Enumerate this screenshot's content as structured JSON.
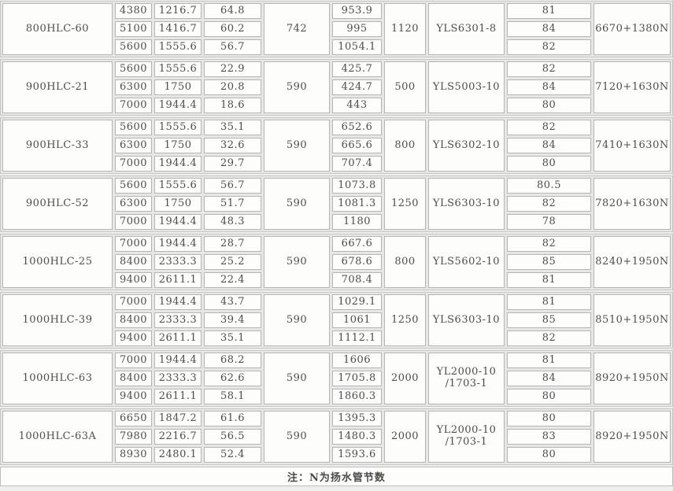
{
  "note": "注：N为扬水管节数",
  "groups": [
    {
      "model": "800HLC-60",
      "speed_rpm": "742",
      "motor_power_kw": "1120",
      "motor_model": "YLS6301-8",
      "length": "6670+1380N",
      "rows": [
        {
          "flow_m3h": "4380",
          "flow_ls": "1216.7",
          "head_m": "64.8",
          "shaft_power_kw": "953.9",
          "efficiency_pct": "81"
        },
        {
          "flow_m3h": "5100",
          "flow_ls": "1416.7",
          "head_m": "60.2",
          "shaft_power_kw": "995",
          "efficiency_pct": "84"
        },
        {
          "flow_m3h": "5600",
          "flow_ls": "1555.6",
          "head_m": "56.7",
          "shaft_power_kw": "1054.1",
          "efficiency_pct": "82"
        }
      ]
    },
    {
      "model": "900HLC-21",
      "speed_rpm": "590",
      "motor_power_kw": "500",
      "motor_model": "YLS5003-10",
      "length": "7120+1630N",
      "rows": [
        {
          "flow_m3h": "5600",
          "flow_ls": "1555.6",
          "head_m": "22.9",
          "shaft_power_kw": "425.7",
          "efficiency_pct": "82"
        },
        {
          "flow_m3h": "6300",
          "flow_ls": "1750",
          "head_m": "20.8",
          "shaft_power_kw": "424.7",
          "efficiency_pct": "84"
        },
        {
          "flow_m3h": "7000",
          "flow_ls": "1944.4",
          "head_m": "18.6",
          "shaft_power_kw": "443",
          "efficiency_pct": "80"
        }
      ]
    },
    {
      "model": "900HLC-33",
      "speed_rpm": "590",
      "motor_power_kw": "800",
      "motor_model": "YLS6302-10",
      "length": "7410+1630N",
      "rows": [
        {
          "flow_m3h": "5600",
          "flow_ls": "1555.6",
          "head_m": "35.1",
          "shaft_power_kw": "652.6",
          "efficiency_pct": "82"
        },
        {
          "flow_m3h": "6300",
          "flow_ls": "1750",
          "head_m": "32.6",
          "shaft_power_kw": "665.6",
          "efficiency_pct": "84"
        },
        {
          "flow_m3h": "7000",
          "flow_ls": "1944.4",
          "head_m": "29.7",
          "shaft_power_kw": "707.4",
          "efficiency_pct": "80"
        }
      ]
    },
    {
      "model": "900HLC-52",
      "speed_rpm": "590",
      "motor_power_kw": "1250",
      "motor_model": "YLS6303-10",
      "length": "7820+1630N",
      "rows": [
        {
          "flow_m3h": "5600",
          "flow_ls": "1555.6",
          "head_m": "56.7",
          "shaft_power_kw": "1073.8",
          "efficiency_pct": "80.5"
        },
        {
          "flow_m3h": "6300",
          "flow_ls": "1750",
          "head_m": "51.7",
          "shaft_power_kw": "1081.3",
          "efficiency_pct": "82"
        },
        {
          "flow_m3h": "7000",
          "flow_ls": "1944.4",
          "head_m": "48.3",
          "shaft_power_kw": "1180",
          "efficiency_pct": "78"
        }
      ]
    },
    {
      "model": "1000HLC-25",
      "speed_rpm": "590",
      "motor_power_kw": "800",
      "motor_model": "YLS5602-10",
      "length": "8240+1950N",
      "rows": [
        {
          "flow_m3h": "7000",
          "flow_ls": "1944.4",
          "head_m": "28.7",
          "shaft_power_kw": "667.6",
          "efficiency_pct": "82"
        },
        {
          "flow_m3h": "8400",
          "flow_ls": "2333.3",
          "head_m": "25.2",
          "shaft_power_kw": "678.6",
          "efficiency_pct": "85"
        },
        {
          "flow_m3h": "9400",
          "flow_ls": "2611.1",
          "head_m": "22.4",
          "shaft_power_kw": "708.4",
          "efficiency_pct": "81"
        }
      ]
    },
    {
      "model": "1000HLC-39",
      "speed_rpm": "590",
      "motor_power_kw": "1250",
      "motor_model": "YLS6303-10",
      "length": "8510+1950N",
      "rows": [
        {
          "flow_m3h": "7000",
          "flow_ls": "1944.4",
          "head_m": "43.7",
          "shaft_power_kw": "1029.1",
          "efficiency_pct": "81"
        },
        {
          "flow_m3h": "8400",
          "flow_ls": "2333.3",
          "head_m": "39.4",
          "shaft_power_kw": "1061",
          "efficiency_pct": "85"
        },
        {
          "flow_m3h": "9400",
          "flow_ls": "2611.1",
          "head_m": "35.1",
          "shaft_power_kw": "1112.1",
          "efficiency_pct": "82"
        }
      ]
    },
    {
      "model": "1000HLC-63",
      "speed_rpm": "590",
      "motor_power_kw": "2000",
      "motor_model": "YL2000-10 /1703-1",
      "length": "8920+1950N",
      "rows": [
        {
          "flow_m3h": "7000",
          "flow_ls": "1944.4",
          "head_m": "68.2",
          "shaft_power_kw": "1606",
          "efficiency_pct": "81"
        },
        {
          "flow_m3h": "8400",
          "flow_ls": "2333.3",
          "head_m": "62.6",
          "shaft_power_kw": "1705.8",
          "efficiency_pct": "84"
        },
        {
          "flow_m3h": "9400",
          "flow_ls": "2611.1",
          "head_m": "58.1",
          "shaft_power_kw": "1860.3",
          "efficiency_pct": "80"
        }
      ]
    },
    {
      "model": "1000HLC-63A",
      "speed_rpm": "590",
      "motor_power_kw": "2000",
      "motor_model": "YL2000-10 /1703-1",
      "length": "8920+1950N",
      "rows": [
        {
          "flow_m3h": "6650",
          "flow_ls": "1847.2",
          "head_m": "61.6",
          "shaft_power_kw": "1395.3",
          "efficiency_pct": "80"
        },
        {
          "flow_m3h": "7980",
          "flow_ls": "2216.7",
          "head_m": "56.5",
          "shaft_power_kw": "1480.3",
          "efficiency_pct": "83"
        },
        {
          "flow_m3h": "8930",
          "flow_ls": "2480.1",
          "head_m": "52.4",
          "shaft_power_kw": "1593.6",
          "efficiency_pct": "80"
        }
      ]
    }
  ]
}
